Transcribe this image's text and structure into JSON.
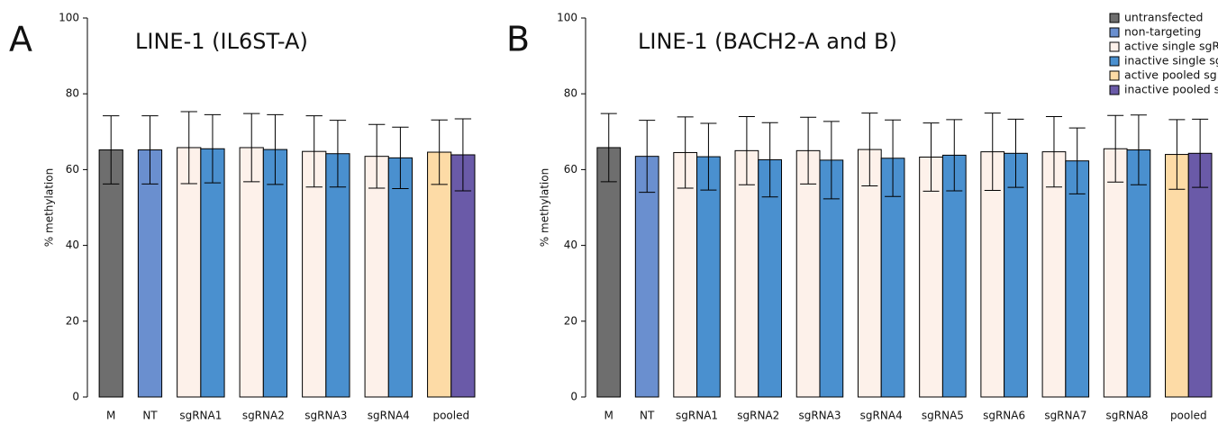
{
  "chart_data": [
    {
      "type": "bar",
      "panel": "A",
      "title": "LINE-1 (IL6ST-A)",
      "y_label": "% methylation",
      "categories": [
        "M",
        "NT",
        "sgRNA1",
        "sgRNA2",
        "sgRNA3",
        "sgRNA4",
        "pooled"
      ],
      "ylim": [
        0,
        100
      ],
      "yticks": [
        0,
        20,
        40,
        60,
        80,
        100
      ],
      "series": [
        {
          "color": "#6e6e6e",
          "values": [
            65.2,
            null,
            null,
            null,
            null,
            null,
            null
          ],
          "errors": [
            9,
            null,
            null,
            null,
            null,
            null,
            null
          ]
        },
        {
          "color": "#6a8fcf",
          "values": [
            null,
            65.2,
            null,
            null,
            null,
            null,
            null
          ],
          "errors": [
            null,
            9,
            null,
            null,
            null,
            null,
            null
          ]
        },
        {
          "color": "#fdf1ea",
          "values": [
            null,
            null,
            65.8,
            65.8,
            64.8,
            63.5,
            null
          ],
          "errors": [
            null,
            null,
            9.5,
            9,
            9.4,
            8.4,
            null
          ]
        },
        {
          "color": "#4a90cf",
          "values": [
            null,
            null,
            65.5,
            65.3,
            64.2,
            63.1,
            null
          ],
          "errors": [
            null,
            null,
            9,
            9.2,
            8.8,
            8.1,
            null
          ]
        },
        {
          "color": "#fddba6",
          "values": [
            null,
            null,
            null,
            null,
            null,
            null,
            64.6
          ],
          "errors": [
            null,
            null,
            null,
            null,
            null,
            null,
            8.5
          ]
        },
        {
          "color": "#6a5aa8",
          "values": [
            null,
            null,
            null,
            null,
            null,
            null,
            63.9
          ],
          "errors": [
            null,
            null,
            null,
            null,
            null,
            null,
            9.5
          ]
        }
      ]
    },
    {
      "type": "bar",
      "panel": "B",
      "title": "LINE-1 (BACH2-A and B)",
      "y_label": "% methylation",
      "categories": [
        "M",
        "NT",
        "sgRNA1",
        "sgRNA2",
        "sgRNA3",
        "sgRNA4",
        "sgRNA5",
        "sgRNA6",
        "sgRNA7",
        "sgRNA8",
        "pooled"
      ],
      "ylim": [
        0,
        100
      ],
      "yticks": [
        0,
        20,
        40,
        60,
        80,
        100
      ],
      "legend": "upper right",
      "series": [
        {
          "name": "untransfected",
          "color": "#6e6e6e",
          "values": [
            65.8,
            null,
            null,
            null,
            null,
            null,
            null,
            null,
            null,
            null,
            null
          ],
          "errors": [
            9,
            null,
            null,
            null,
            null,
            null,
            null,
            null,
            null,
            null,
            null
          ]
        },
        {
          "name": "non-targeting",
          "color": "#6a8fcf",
          "values": [
            null,
            63.5,
            null,
            null,
            null,
            null,
            null,
            null,
            null,
            null,
            null
          ],
          "errors": [
            null,
            9.5,
            null,
            null,
            null,
            null,
            null,
            null,
            null,
            null,
            null
          ]
        },
        {
          "name": "active single sgRNA",
          "color": "#fdf1ea",
          "values": [
            null,
            null,
            64.5,
            65,
            65,
            65.3,
            63.3,
            64.7,
            64.7,
            65.5,
            null
          ],
          "errors": [
            null,
            null,
            9.4,
            9,
            8.8,
            9.6,
            9,
            10.2,
            9.3,
            8.8,
            null
          ]
        },
        {
          "name": "inactive single sgRNA",
          "color": "#4a90cf",
          "values": [
            null,
            null,
            63.4,
            62.6,
            62.5,
            63,
            63.8,
            64.3,
            62.3,
            65.2,
            null
          ],
          "errors": [
            null,
            null,
            8.8,
            9.8,
            10.2,
            10.1,
            9.4,
            9,
            8.7,
            9.2,
            null
          ]
        },
        {
          "name": "active pooled sgRNAs",
          "color": "#fddba6",
          "values": [
            null,
            null,
            null,
            null,
            null,
            null,
            null,
            null,
            null,
            null,
            64
          ],
          "errors": [
            null,
            null,
            null,
            null,
            null,
            null,
            null,
            null,
            null,
            null,
            9.2
          ]
        },
        {
          "name": "inactive pooled sgRNAs",
          "color": "#6a5aa8",
          "values": [
            null,
            null,
            null,
            null,
            null,
            null,
            null,
            null,
            null,
            null,
            64.3
          ],
          "errors": [
            null,
            null,
            null,
            null,
            null,
            null,
            null,
            null,
            null,
            null,
            9
          ]
        }
      ]
    }
  ]
}
